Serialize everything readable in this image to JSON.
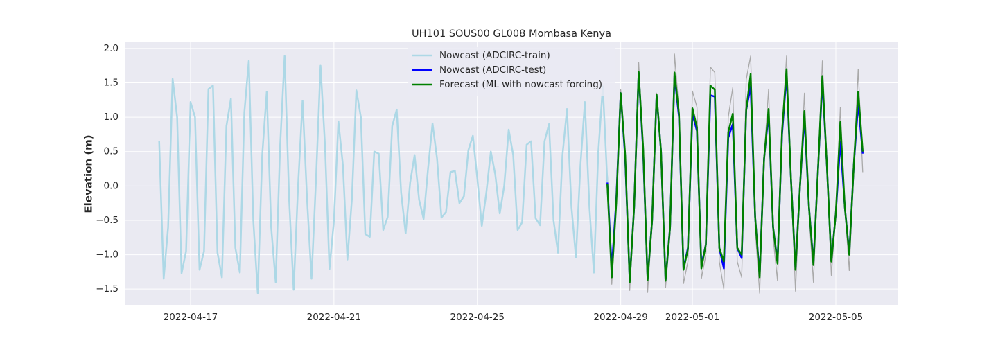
{
  "chart_data": {
    "type": "line",
    "title": "UH101 SOUS00 GL008 Mombasa Kenya",
    "ylabel": "Elevation (m)",
    "xlim": [
      "2022-04-15 04:24",
      "2022-05-06 17:18"
    ],
    "xticks": [
      "2022-04-17",
      "2022-04-21",
      "2022-04-25",
      "2022-04-29",
      "2022-05-01",
      "2022-05-05"
    ],
    "ylim": [
      -1.73,
      2.1
    ],
    "yticks": [
      {
        "value": -1.5,
        "label": "−1.5"
      },
      {
        "value": -1,
        "label": "−1.0"
      },
      {
        "value": -0.5,
        "label": "−0.5"
      },
      {
        "value": 0,
        "label": "0.0"
      },
      0.5,
      {
        "value": 1,
        "label": "1.0"
      },
      1.5,
      {
        "value": 2,
        "label": "2.0"
      }
    ],
    "grid": true,
    "legend": "upper center",
    "series": [
      {
        "color": "#a9a9a9",
        "x": [
          "2022-04-28 15:00",
          "2022-04-28 18:00",
          "2022-04-28 21:00",
          "2022-04-29 00:00",
          "2022-04-29 03:00",
          "2022-04-29 06:00",
          "2022-04-29 09:00",
          "2022-04-29 12:00",
          "2022-04-29 15:00",
          "2022-04-29 18:00",
          "2022-04-29 21:00",
          "2022-04-30 00:00",
          "2022-04-30 03:00",
          "2022-04-30 06:00",
          "2022-04-30 09:00",
          "2022-04-30 12:00",
          "2022-04-30 15:00",
          "2022-04-30 18:00",
          "2022-04-30 21:00",
          "2022-05-01 00:00",
          "2022-05-01 03:00",
          "2022-05-01 06:00",
          "2022-05-01 09:00",
          "2022-05-01 12:00",
          "2022-05-01 15:00",
          "2022-05-01 18:00",
          "2022-05-01 21:00",
          "2022-05-02 00:00",
          "2022-05-02 03:00",
          "2022-05-02 06:00",
          "2022-05-02 09:00",
          "2022-05-02 12:00",
          "2022-05-02 15:00",
          "2022-05-02 18:00",
          "2022-05-02 21:00",
          "2022-05-03 00:00",
          "2022-05-03 03:00",
          "2022-05-03 06:00",
          "2022-05-03 09:00",
          "2022-05-03 12:00",
          "2022-05-03 15:00",
          "2022-05-03 18:00",
          "2022-05-03 21:00",
          "2022-05-04 00:00",
          "2022-05-04 03:00",
          "2022-05-04 06:00",
          "2022-05-04 09:00",
          "2022-05-04 12:00",
          "2022-05-04 15:00",
          "2022-05-04 18:00",
          "2022-05-04 21:00",
          "2022-05-05 00:00",
          "2022-05-05 03:00",
          "2022-05-05 06:00",
          "2022-05-05 09:00",
          "2022-05-05 12:00",
          "2022-05-05 15:00",
          "2022-05-05 18:00"
        ],
        "values": [
          0.17,
          -1.43,
          -0.3,
          1.4,
          0.45,
          -1.52,
          -0.35,
          1.8,
          0.55,
          -1.55,
          -0.55,
          1.35,
          0.5,
          -1.48,
          -0.7,
          1.92,
          1.1,
          -1.42,
          -1.1,
          1.38,
          1.15,
          -1.35,
          -1.0,
          1.73,
          1.65,
          -1.1,
          -1.5,
          1.0,
          1.43,
          -1.1,
          -1.33,
          1.55,
          1.89,
          -0.6,
          -1.56,
          0.4,
          1.41,
          -0.75,
          -1.38,
          0.8,
          1.89,
          0.1,
          -1.53,
          0.0,
          1.35,
          -0.4,
          -1.4,
          0.2,
          1.82,
          0.3,
          -1.3,
          -0.4,
          1.14,
          -0.3,
          -1.23,
          0.3,
          1.7,
          0.2
        ]
      },
      {
        "name": "Nowcast (ADCIRC-train)",
        "color": "#add8e6",
        "x": [
          "2022-04-16 03:00",
          "2022-04-16 06:00",
          "2022-04-16 09:00",
          "2022-04-16 12:00",
          "2022-04-16 15:00",
          "2022-04-16 18:00",
          "2022-04-16 21:00",
          "2022-04-17 00:00",
          "2022-04-17 03:00",
          "2022-04-17 06:00",
          "2022-04-17 09:00",
          "2022-04-17 12:00",
          "2022-04-17 15:00",
          "2022-04-17 18:00",
          "2022-04-17 21:00",
          "2022-04-18 00:00",
          "2022-04-18 03:00",
          "2022-04-18 06:00",
          "2022-04-18 09:00",
          "2022-04-18 12:00",
          "2022-04-18 15:00",
          "2022-04-18 18:00",
          "2022-04-18 21:00",
          "2022-04-19 00:00",
          "2022-04-19 03:00",
          "2022-04-19 06:00",
          "2022-04-19 09:00",
          "2022-04-19 12:00",
          "2022-04-19 15:00",
          "2022-04-19 18:00",
          "2022-04-19 21:00",
          "2022-04-20 00:00",
          "2022-04-20 03:00",
          "2022-04-20 06:00",
          "2022-04-20 09:00",
          "2022-04-20 12:00",
          "2022-04-20 15:00",
          "2022-04-20 18:00",
          "2022-04-20 21:00",
          "2022-04-21 00:00",
          "2022-04-21 03:00",
          "2022-04-21 06:00",
          "2022-04-21 09:00",
          "2022-04-21 12:00",
          "2022-04-21 15:00",
          "2022-04-21 18:00",
          "2022-04-21 21:00",
          "2022-04-22 00:00",
          "2022-04-22 03:00",
          "2022-04-22 06:00",
          "2022-04-22 09:00",
          "2022-04-22 12:00",
          "2022-04-22 15:00",
          "2022-04-22 18:00",
          "2022-04-22 21:00",
          "2022-04-23 00:00",
          "2022-04-23 03:00",
          "2022-04-23 06:00",
          "2022-04-23 09:00",
          "2022-04-23 12:00",
          "2022-04-23 15:00",
          "2022-04-23 18:00",
          "2022-04-23 21:00",
          "2022-04-24 00:00",
          "2022-04-24 03:00",
          "2022-04-24 06:00",
          "2022-04-24 09:00",
          "2022-04-24 12:00",
          "2022-04-24 15:00",
          "2022-04-24 18:00",
          "2022-04-24 21:00",
          "2022-04-25 00:00",
          "2022-04-25 03:00",
          "2022-04-25 06:00",
          "2022-04-25 09:00",
          "2022-04-25 12:00",
          "2022-04-25 15:00",
          "2022-04-25 18:00",
          "2022-04-25 21:00",
          "2022-04-26 00:00",
          "2022-04-26 03:00",
          "2022-04-26 06:00",
          "2022-04-26 09:00",
          "2022-04-26 12:00",
          "2022-04-26 15:00",
          "2022-04-26 18:00",
          "2022-04-26 21:00",
          "2022-04-27 00:00",
          "2022-04-27 03:00",
          "2022-04-27 06:00",
          "2022-04-27 09:00",
          "2022-04-27 12:00",
          "2022-04-27 15:00",
          "2022-04-27 18:00",
          "2022-04-27 21:00",
          "2022-04-28 00:00",
          "2022-04-28 03:00",
          "2022-04-28 06:00",
          "2022-04-28 09:00",
          "2022-04-28 12:00",
          "2022-04-28 15:00"
        ],
        "values": [
          0.65,
          -1.35,
          -0.6,
          1.56,
          1.0,
          -1.27,
          -0.95,
          1.22,
          1.0,
          -1.22,
          -0.95,
          1.41,
          1.46,
          -0.97,
          -1.33,
          0.87,
          1.27,
          -0.9,
          -1.26,
          1.07,
          1.82,
          -0.5,
          -1.56,
          0.45,
          1.37,
          -0.6,
          -1.4,
          0.6,
          1.89,
          -0.2,
          -1.51,
          0.0,
          1.24,
          -0.2,
          -1.35,
          0.1,
          1.75,
          0.6,
          -1.21,
          -0.5,
          0.94,
          0.3,
          -1.07,
          -0.2,
          1.39,
          1.0,
          -0.7,
          -0.74,
          0.5,
          0.47,
          -0.64,
          -0.45,
          0.87,
          1.11,
          -0.1,
          -0.69,
          0.05,
          0.45,
          -0.2,
          -0.48,
          0.25,
          0.91,
          0.4,
          -0.46,
          -0.38,
          0.2,
          0.22,
          -0.25,
          -0.15,
          0.52,
          0.73,
          0.1,
          -0.58,
          -0.1,
          0.5,
          0.17,
          -0.4,
          0.0,
          0.82,
          0.45,
          -0.64,
          -0.53,
          0.6,
          0.65,
          -0.47,
          -0.57,
          0.65,
          0.9,
          -0.5,
          -0.97,
          0.45,
          1.12,
          -0.3,
          -1.04,
          0.3,
          1.22,
          -0.3,
          -1.26,
          0.5,
          1.45,
          0.05
        ]
      },
      {
        "name": "Nowcast (ADCIRC-test)",
        "color": "#0000ff",
        "x": [
          "2022-04-28 15:00",
          "2022-04-28 18:00",
          "2022-04-28 21:00",
          "2022-04-29 00:00",
          "2022-04-29 03:00",
          "2022-04-29 06:00",
          "2022-04-29 09:00",
          "2022-04-29 12:00",
          "2022-04-29 15:00",
          "2022-04-29 18:00",
          "2022-04-29 21:00",
          "2022-04-30 00:00",
          "2022-04-30 03:00",
          "2022-04-30 06:00",
          "2022-04-30 09:00",
          "2022-04-30 12:00",
          "2022-04-30 15:00",
          "2022-04-30 18:00",
          "2022-04-30 21:00",
          "2022-05-01 00:00",
          "2022-05-01 03:00",
          "2022-05-01 06:00",
          "2022-05-01 09:00",
          "2022-05-01 12:00",
          "2022-05-01 15:00",
          "2022-05-01 18:00",
          "2022-05-01 21:00",
          "2022-05-02 00:00",
          "2022-05-02 03:00",
          "2022-05-02 06:00",
          "2022-05-02 09:00",
          "2022-05-02 12:00",
          "2022-05-02 15:00",
          "2022-05-02 18:00",
          "2022-05-02 21:00",
          "2022-05-03 00:00",
          "2022-05-03 03:00",
          "2022-05-03 06:00",
          "2022-05-03 09:00",
          "2022-05-03 12:00",
          "2022-05-03 15:00",
          "2022-05-03 18:00",
          "2022-05-03 21:00",
          "2022-05-04 00:00",
          "2022-05-04 03:00",
          "2022-05-04 06:00",
          "2022-05-04 09:00",
          "2022-05-04 12:00",
          "2022-05-04 15:00",
          "2022-05-04 18:00",
          "2022-05-04 21:00",
          "2022-05-05 00:00",
          "2022-05-05 03:00",
          "2022-05-05 06:00",
          "2022-05-05 09:00",
          "2022-05-05 12:00",
          "2022-05-05 15:00",
          "2022-05-05 18:00"
        ],
        "values": [
          0.05,
          -1.2,
          -0.2,
          1.35,
          0.4,
          -1.38,
          -0.3,
          1.65,
          0.5,
          -1.35,
          -0.5,
          1.32,
          0.5,
          -1.37,
          -0.6,
          1.6,
          1.0,
          -1.2,
          -0.9,
          1.05,
          0.8,
          -1.15,
          -0.85,
          1.32,
          1.3,
          -0.9,
          -1.2,
          0.7,
          0.9,
          -0.9,
          -1.05,
          1.1,
          1.45,
          -0.45,
          -1.3,
          0.4,
          1.05,
          -0.6,
          -1.1,
          0.75,
          1.62,
          0.1,
          -1.2,
          0.0,
          1.0,
          -0.3,
          -1.12,
          0.2,
          1.52,
          0.3,
          -1.08,
          -0.4,
          0.65,
          -0.3,
          -0.98,
          0.3,
          1.2,
          0.47
        ]
      },
      {
        "name": "Forecast (ML with nowcast forcing)",
        "color": "#008000",
        "x": [
          "2022-04-28 15:00",
          "2022-04-28 18:00",
          "2022-04-28 21:00",
          "2022-04-29 00:00",
          "2022-04-29 03:00",
          "2022-04-29 06:00",
          "2022-04-29 09:00",
          "2022-04-29 12:00",
          "2022-04-29 15:00",
          "2022-04-29 18:00",
          "2022-04-29 21:00",
          "2022-04-30 00:00",
          "2022-04-30 03:00",
          "2022-04-30 06:00",
          "2022-04-30 09:00",
          "2022-04-30 12:00",
          "2022-04-30 15:00",
          "2022-04-30 18:00",
          "2022-04-30 21:00",
          "2022-05-01 00:00",
          "2022-05-01 03:00",
          "2022-05-01 06:00",
          "2022-05-01 09:00",
          "2022-05-01 12:00",
          "2022-05-01 15:00",
          "2022-05-01 18:00",
          "2022-05-01 21:00",
          "2022-05-02 00:00",
          "2022-05-02 03:00",
          "2022-05-02 06:00",
          "2022-05-02 09:00",
          "2022-05-02 12:00",
          "2022-05-02 15:00",
          "2022-05-02 18:00",
          "2022-05-02 21:00",
          "2022-05-03 00:00",
          "2022-05-03 03:00",
          "2022-05-03 06:00",
          "2022-05-03 09:00",
          "2022-05-03 12:00",
          "2022-05-03 15:00",
          "2022-05-03 18:00",
          "2022-05-03 21:00",
          "2022-05-04 00:00",
          "2022-05-04 03:00",
          "2022-05-04 06:00",
          "2022-05-04 09:00",
          "2022-05-04 12:00",
          "2022-05-04 15:00",
          "2022-05-04 18:00",
          "2022-05-04 21:00",
          "2022-05-05 00:00",
          "2022-05-05 03:00",
          "2022-05-05 06:00",
          "2022-05-05 09:00",
          "2022-05-05 12:00",
          "2022-05-05 15:00",
          "2022-05-05 18:00"
        ],
        "values": [
          0.03,
          -1.33,
          -0.25,
          1.35,
          0.45,
          -1.4,
          -0.3,
          1.66,
          0.55,
          -1.37,
          -0.5,
          1.33,
          0.5,
          -1.38,
          -0.6,
          1.65,
          1.05,
          -1.22,
          -0.92,
          1.13,
          0.85,
          -1.2,
          -0.85,
          1.46,
          1.4,
          -0.9,
          -1.1,
          0.78,
          1.05,
          -0.9,
          -1.0,
          1.1,
          1.63,
          -0.45,
          -1.33,
          0.4,
          1.12,
          -0.6,
          -1.13,
          0.8,
          1.7,
          0.1,
          -1.22,
          0.0,
          1.09,
          -0.3,
          -1.15,
          0.2,
          1.6,
          0.3,
          -1.1,
          -0.4,
          0.93,
          -0.3,
          -1.0,
          0.3,
          1.37,
          0.5
        ]
      }
    ]
  }
}
